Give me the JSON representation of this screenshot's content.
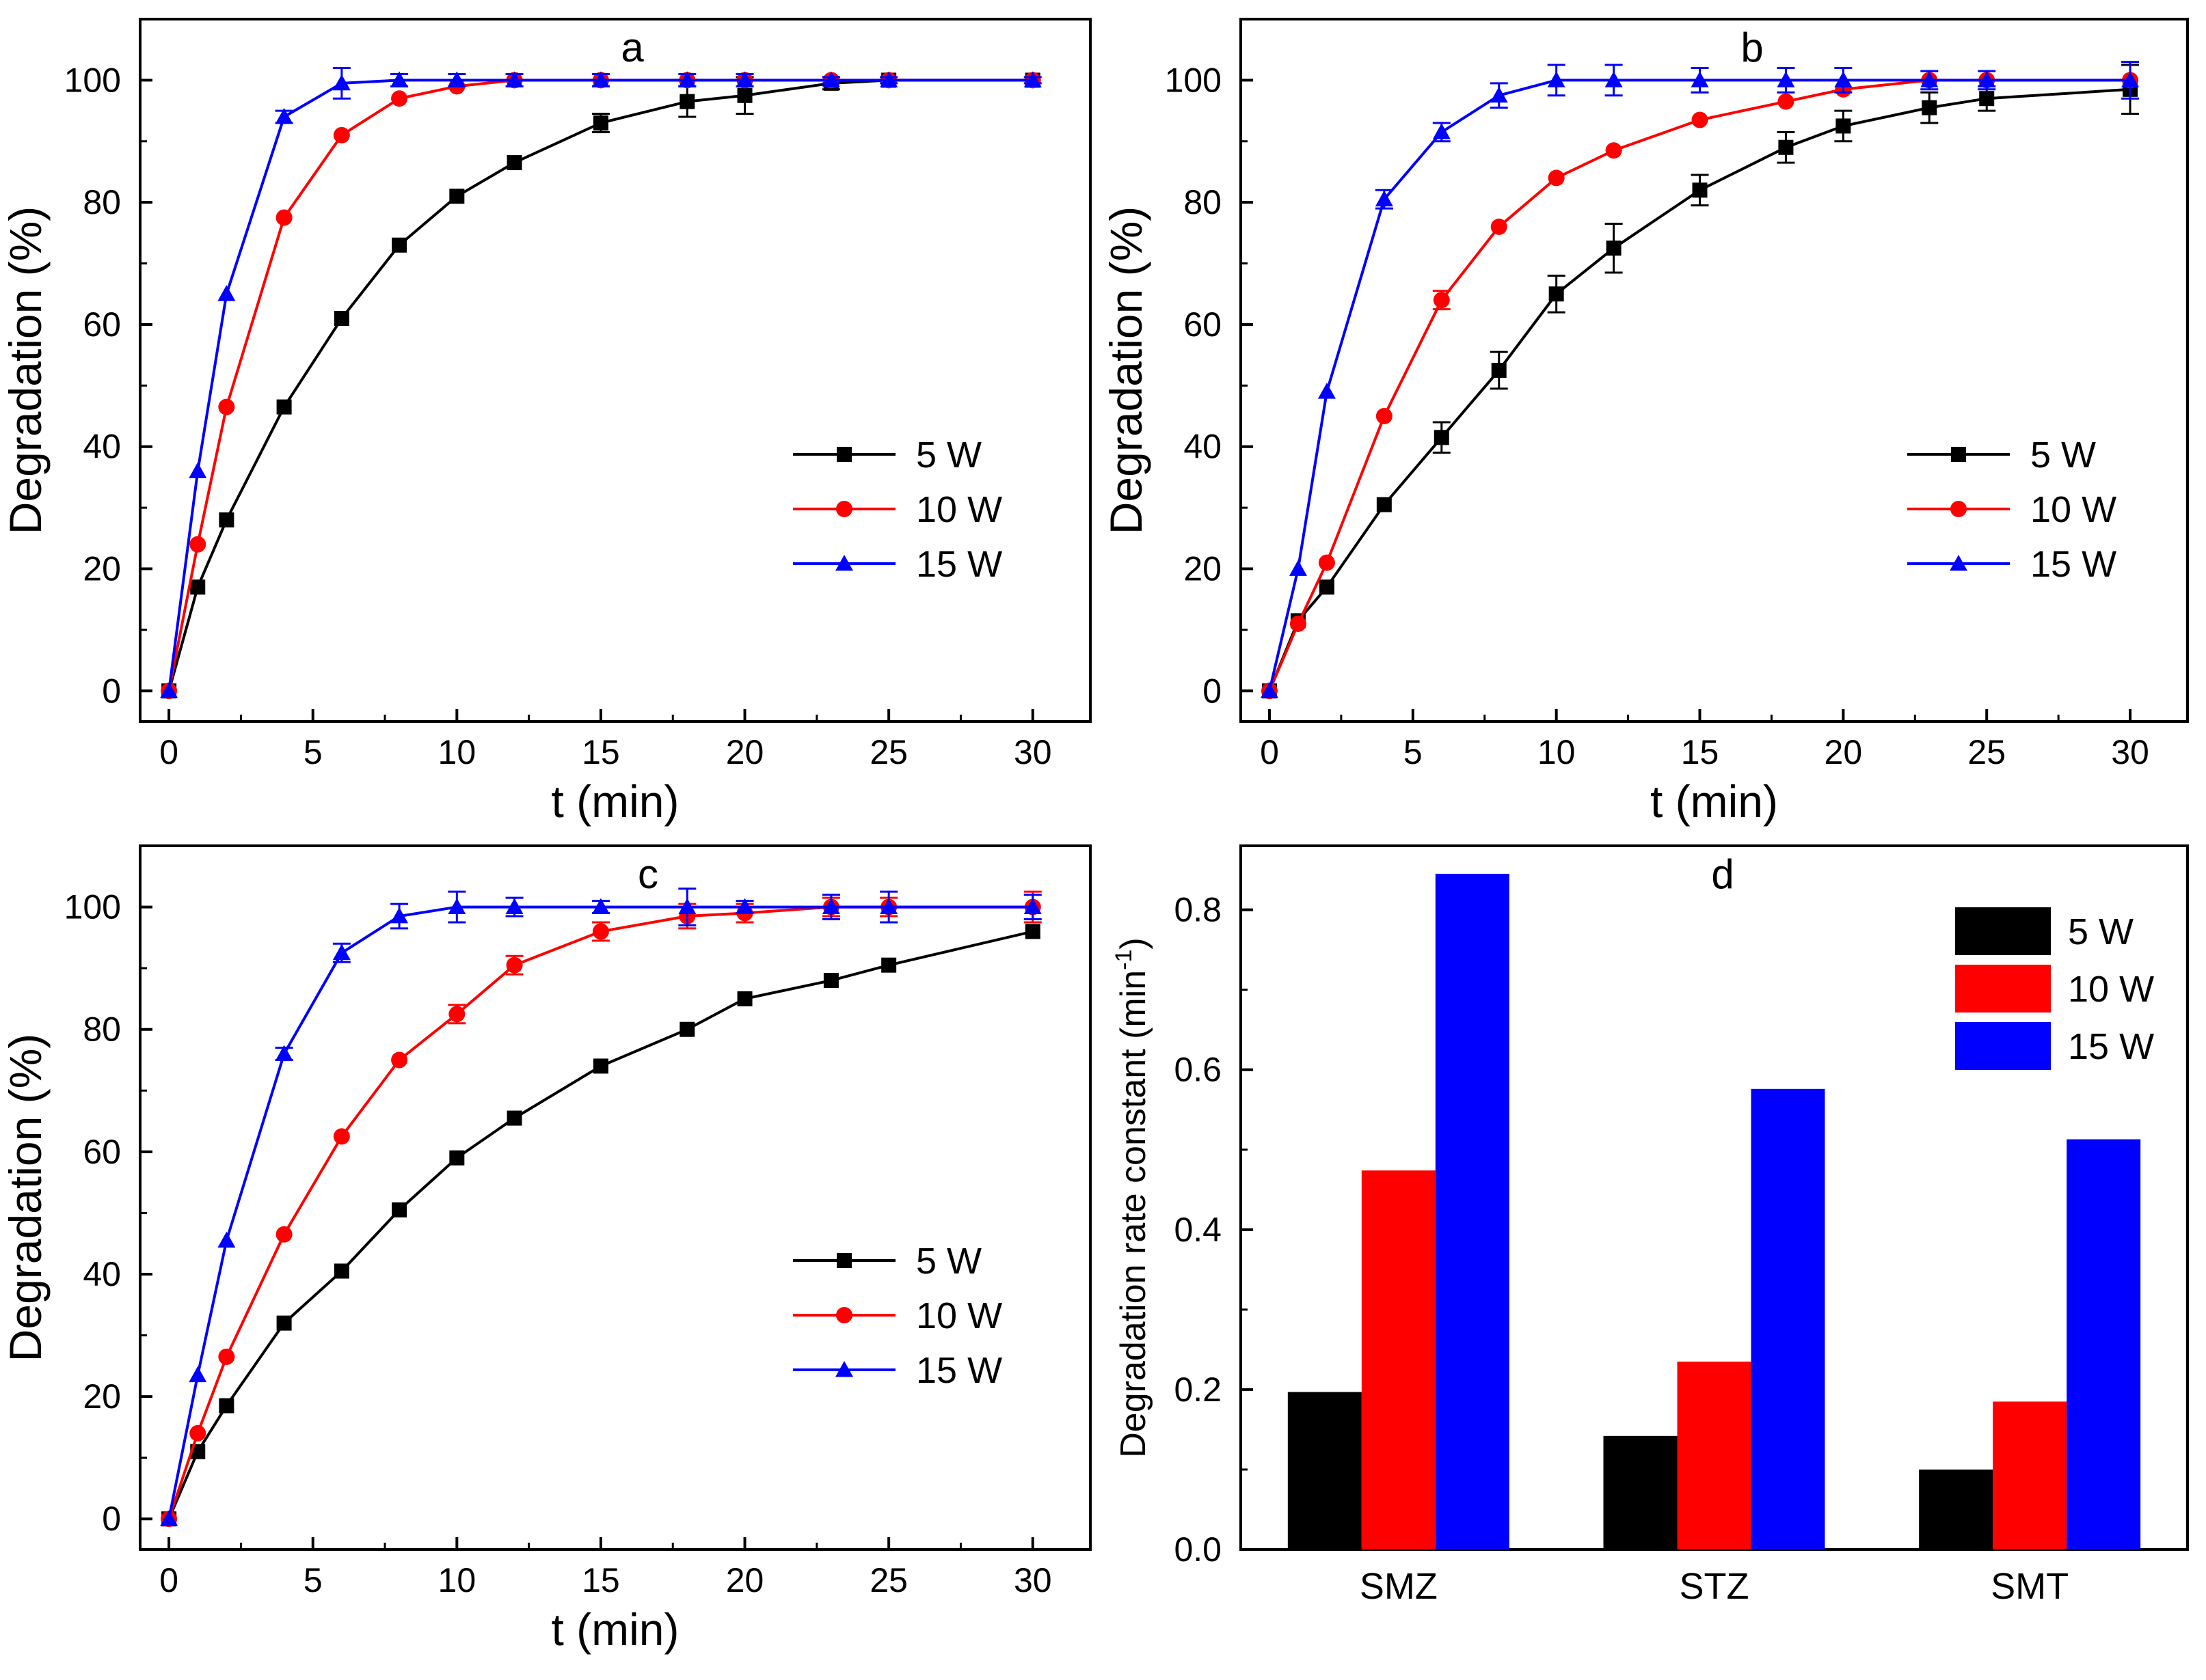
{
  "chart_data": [
    {
      "panel": "a",
      "type": "line",
      "xlabel": "t (min)",
      "ylabel": "Degradation (%)",
      "xlim": [
        -1,
        32
      ],
      "ylim": [
        -5,
        110
      ],
      "xticks": [
        0,
        5,
        10,
        15,
        20,
        25,
        30
      ],
      "yticks": [
        0,
        20,
        40,
        60,
        80,
        100
      ],
      "legend_position": "center-right",
      "series": [
        {
          "name": "5 W",
          "color": "#000000",
          "marker": "square",
          "x": [
            0,
            1,
            2,
            4,
            6,
            8,
            10,
            12,
            15,
            18,
            20,
            23,
            25,
            30
          ],
          "y": [
            0,
            17,
            28,
            46.5,
            61,
            73,
            81,
            86.5,
            93,
            96.5,
            97.5,
            99.5,
            100,
            100
          ],
          "err": [
            0,
            0,
            0,
            0,
            0,
            0,
            0,
            0,
            1.5,
            2.5,
            3,
            1,
            0,
            0
          ]
        },
        {
          "name": "10 W",
          "color": "#ff0000",
          "marker": "circle",
          "x": [
            0,
            1,
            2,
            4,
            6,
            8,
            10,
            12,
            15,
            18,
            20,
            23,
            25,
            30
          ],
          "y": [
            0,
            24,
            46.5,
            77.5,
            91,
            97,
            99,
            100,
            100,
            100,
            100,
            100,
            100,
            100
          ],
          "err": [
            0,
            0,
            0,
            0,
            0,
            0,
            0,
            0,
            0,
            0,
            0,
            0,
            0,
            0
          ]
        },
        {
          "name": "15 W",
          "color": "#0000ff",
          "marker": "triangle",
          "x": [
            0,
            1,
            2,
            4,
            6,
            8,
            10,
            12,
            15,
            18,
            20,
            23,
            25,
            30
          ],
          "y": [
            0,
            36,
            65,
            94,
            99.5,
            100,
            100,
            100,
            100,
            100,
            100,
            100,
            100,
            100
          ],
          "err": [
            0,
            0,
            0,
            1,
            2.5,
            1,
            1,
            1,
            1,
            1,
            1,
            0.5,
            0.5,
            0.5
          ]
        }
      ]
    },
    {
      "panel": "b",
      "type": "line",
      "xlabel": "t (min)",
      "ylabel": "Degradation (%)",
      "xlim": [
        -1,
        32
      ],
      "ylim": [
        -5,
        110
      ],
      "xticks": [
        0,
        5,
        10,
        15,
        20,
        25,
        30
      ],
      "yticks": [
        0,
        20,
        40,
        60,
        80,
        100
      ],
      "legend_position": "center-right",
      "series": [
        {
          "name": "5 W",
          "color": "#000000",
          "marker": "square",
          "x": [
            0,
            1,
            2,
            4,
            6,
            8,
            10,
            12,
            15,
            18,
            20,
            23,
            25,
            30
          ],
          "y": [
            0,
            11.5,
            17,
            30.5,
            41.5,
            52.5,
            65,
            72.5,
            82,
            89,
            92.5,
            95.5,
            97,
            98.5
          ],
          "err": [
            0,
            0,
            0,
            0,
            2.5,
            3,
            3,
            4,
            2.5,
            2.5,
            2.5,
            2.5,
            2,
            4
          ]
        },
        {
          "name": "10 W",
          "color": "#ff0000",
          "marker": "circle",
          "x": [
            0,
            1,
            2,
            4,
            6,
            8,
            10,
            12,
            15,
            18,
            20,
            23,
            25,
            30
          ],
          "y": [
            0,
            11,
            21,
            45,
            64,
            76,
            84,
            88.5,
            93.5,
            96.5,
            98.5,
            100,
            100,
            100
          ],
          "err": [
            0,
            0,
            0,
            0,
            1.5,
            0,
            0,
            0,
            0,
            0,
            0,
            0,
            0,
            0
          ]
        },
        {
          "name": "15 W",
          "color": "#0000ff",
          "marker": "triangle",
          "x": [
            0,
            1,
            2,
            4,
            6,
            8,
            10,
            12,
            15,
            18,
            20,
            23,
            25,
            30
          ],
          "y": [
            0,
            20,
            49,
            80.5,
            91.5,
            97.5,
            100,
            100,
            100,
            100,
            100,
            100,
            100,
            100
          ],
          "err": [
            0,
            0,
            0,
            1.5,
            1.5,
            2,
            2.5,
            2.5,
            2,
            2,
            2,
            1.5,
            1.5,
            3
          ]
        }
      ]
    },
    {
      "panel": "c",
      "type": "line",
      "xlabel": "t (min)",
      "ylabel": "Degradation (%)",
      "xlim": [
        -1,
        32
      ],
      "ylim": [
        -5,
        110
      ],
      "xticks": [
        0,
        5,
        10,
        15,
        20,
        25,
        30
      ],
      "yticks": [
        0,
        20,
        40,
        60,
        80,
        100
      ],
      "legend_position": "center-right",
      "series": [
        {
          "name": "5 W",
          "color": "#000000",
          "marker": "square",
          "x": [
            0,
            1,
            2,
            4,
            6,
            8,
            10,
            12,
            15,
            18,
            20,
            23,
            25,
            30
          ],
          "y": [
            0,
            11,
            18.5,
            32,
            40.5,
            50.5,
            59,
            65.5,
            74,
            80,
            85,
            88,
            90.5,
            96
          ],
          "err": [
            0,
            0,
            0,
            0,
            0,
            0,
            0,
            0,
            0,
            0,
            0,
            0,
            0,
            0
          ]
        },
        {
          "name": "10 W",
          "color": "#ff0000",
          "marker": "circle",
          "x": [
            0,
            1,
            2,
            4,
            6,
            8,
            10,
            12,
            15,
            18,
            20,
            23,
            25,
            30
          ],
          "y": [
            0,
            14,
            26.5,
            46.5,
            62.5,
            75,
            82.5,
            90.5,
            96,
            98.5,
            99,
            100,
            100,
            100
          ],
          "err": [
            0,
            0,
            0,
            0,
            0,
            0,
            1.5,
            1.5,
            1.5,
            2,
            1.5,
            1.5,
            1.5,
            2.5
          ]
        },
        {
          "name": "15 W",
          "color": "#0000ff",
          "marker": "triangle",
          "x": [
            0,
            1,
            2,
            4,
            6,
            8,
            10,
            12,
            15,
            18,
            20,
            23,
            25,
            30
          ],
          "y": [
            0,
            23.5,
            45.5,
            76,
            92.5,
            98.5,
            100,
            100,
            100,
            100,
            100,
            100,
            100,
            100
          ],
          "err": [
            0,
            0,
            0,
            1,
            1.5,
            2,
            2.5,
            1.5,
            1,
            3,
            1,
            2,
            2.5,
            2
          ]
        }
      ]
    },
    {
      "panel": "d",
      "type": "bar",
      "xlabel": "",
      "ylabel": "Degradation rate constant (min",
      "ylabel_sup": "-1",
      "ylabel_end": ")",
      "ylim": [
        0,
        0.88
      ],
      "yticks": [
        "0.0",
        "0.2",
        "0.4",
        "0.6",
        "0.8"
      ],
      "categories": [
        "SMZ",
        "STZ",
        "SMT"
      ],
      "legend_position": "top-right",
      "series": [
        {
          "name": "5 W",
          "color": "#000000",
          "values": [
            0.197,
            0.142,
            0.1
          ]
        },
        {
          "name": "10 W",
          "color": "#ff0000",
          "values": [
            0.474,
            0.235,
            0.185
          ]
        },
        {
          "name": "15 W",
          "color": "#0000ff",
          "values": [
            0.845,
            0.576,
            0.513
          ]
        }
      ]
    }
  ]
}
